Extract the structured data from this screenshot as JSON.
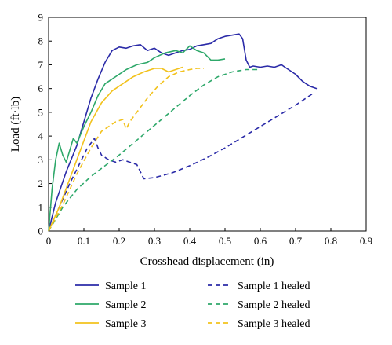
{
  "chart_data": {
    "type": "line",
    "xlabel": "Crosshead displacement (in)",
    "ylabel": "Load (ft·lb)",
    "xlim": [
      0,
      0.9
    ],
    "ylim": [
      0,
      9
    ],
    "xticks": [
      "0",
      "0.1",
      "0.2",
      "0.3",
      "0.4",
      "0.5",
      "0.6",
      "0.7",
      "0.8",
      "0.9"
    ],
    "yticks": [
      "0",
      "1",
      "2",
      "3",
      "4",
      "5",
      "6",
      "7",
      "8",
      "9"
    ],
    "grid": false,
    "legend_position": "bottom",
    "series": [
      {
        "name": "Sample 1",
        "color": "#2b2ba8",
        "dash": "solid",
        "x": [
          0,
          0.02,
          0.05,
          0.08,
          0.1,
          0.12,
          0.14,
          0.16,
          0.18,
          0.2,
          0.22,
          0.24,
          0.26,
          0.28,
          0.3,
          0.32,
          0.34,
          0.36,
          0.38,
          0.4,
          0.42,
          0.44,
          0.46,
          0.48,
          0.5,
          0.52,
          0.54,
          0.55,
          0.56,
          0.57,
          0.58,
          0.6,
          0.62,
          0.64,
          0.66,
          0.67,
          0.68,
          0.7,
          0.72,
          0.74,
          0.76
        ],
        "y": [
          0,
          1.2,
          2.5,
          3.6,
          4.6,
          5.6,
          6.4,
          7.1,
          7.6,
          7.75,
          7.7,
          7.8,
          7.85,
          7.6,
          7.7,
          7.5,
          7.4,
          7.5,
          7.6,
          7.65,
          7.8,
          7.85,
          7.9,
          8.1,
          8.2,
          8.25,
          8.3,
          8.1,
          7.2,
          6.9,
          6.95,
          6.9,
          6.95,
          6.9,
          7.0,
          6.9,
          6.8,
          6.6,
          6.3,
          6.1,
          6.0
        ]
      },
      {
        "name": "Sample 1 healed",
        "color": "#2b2ba8",
        "dash": "dashed",
        "x": [
          0,
          0.03,
          0.06,
          0.09,
          0.11,
          0.13,
          0.14,
          0.15,
          0.17,
          0.19,
          0.21,
          0.23,
          0.25,
          0.26,
          0.27,
          0.3,
          0.35,
          0.4,
          0.45,
          0.5,
          0.55,
          0.6,
          0.65,
          0.7,
          0.75
        ],
        "y": [
          0,
          1.0,
          2.0,
          2.9,
          3.5,
          3.9,
          3.5,
          3.2,
          3.0,
          2.9,
          3.0,
          2.9,
          2.8,
          2.5,
          2.2,
          2.25,
          2.45,
          2.75,
          3.1,
          3.5,
          3.95,
          4.4,
          4.85,
          5.3,
          5.8
        ]
      },
      {
        "name": "Sample 2",
        "color": "#2ea86a",
        "dash": "solid",
        "x": [
          0,
          0.01,
          0.02,
          0.03,
          0.04,
          0.05,
          0.06,
          0.07,
          0.08,
          0.1,
          0.12,
          0.14,
          0.16,
          0.18,
          0.2,
          0.22,
          0.25,
          0.28,
          0.3,
          0.33,
          0.36,
          0.38,
          0.4,
          0.42,
          0.44,
          0.46,
          0.48,
          0.5
        ],
        "y": [
          0,
          1.8,
          3.0,
          3.7,
          3.2,
          2.9,
          3.4,
          3.9,
          3.7,
          4.4,
          5.0,
          5.7,
          6.2,
          6.4,
          6.6,
          6.8,
          7.0,
          7.1,
          7.3,
          7.5,
          7.6,
          7.5,
          7.8,
          7.6,
          7.5,
          7.2,
          7.2,
          7.25
        ]
      },
      {
        "name": "Sample 2 healed",
        "color": "#2ea86a",
        "dash": "dashed",
        "x": [
          0,
          0.04,
          0.08,
          0.12,
          0.16,
          0.2,
          0.24,
          0.28,
          0.32,
          0.36,
          0.4,
          0.44,
          0.48,
          0.52,
          0.56,
          0.6
        ],
        "y": [
          0,
          1.0,
          1.75,
          2.3,
          2.75,
          3.2,
          3.7,
          4.2,
          4.7,
          5.2,
          5.7,
          6.15,
          6.5,
          6.7,
          6.8,
          6.8
        ]
      },
      {
        "name": "Sample 3",
        "color": "#f2c21d",
        "dash": "solid",
        "x": [
          0,
          0.03,
          0.06,
          0.09,
          0.12,
          0.15,
          0.18,
          0.21,
          0.24,
          0.27,
          0.3,
          0.32,
          0.34,
          0.36,
          0.38
        ],
        "y": [
          0,
          1.0,
          2.2,
          3.4,
          4.6,
          5.4,
          5.9,
          6.2,
          6.5,
          6.7,
          6.85,
          6.85,
          6.7,
          6.8,
          6.9
        ]
      },
      {
        "name": "Sample 3 healed",
        "color": "#f2c21d",
        "dash": "dashed",
        "x": [
          0,
          0.04,
          0.08,
          0.12,
          0.15,
          0.17,
          0.19,
          0.21,
          0.22,
          0.23,
          0.25,
          0.28,
          0.31,
          0.34,
          0.37,
          0.4,
          0.42,
          0.44
        ],
        "y": [
          0,
          1.1,
          2.4,
          3.5,
          4.2,
          4.4,
          4.6,
          4.7,
          4.3,
          4.6,
          5.0,
          5.6,
          6.1,
          6.5,
          6.7,
          6.8,
          6.85,
          6.85
        ]
      }
    ]
  }
}
